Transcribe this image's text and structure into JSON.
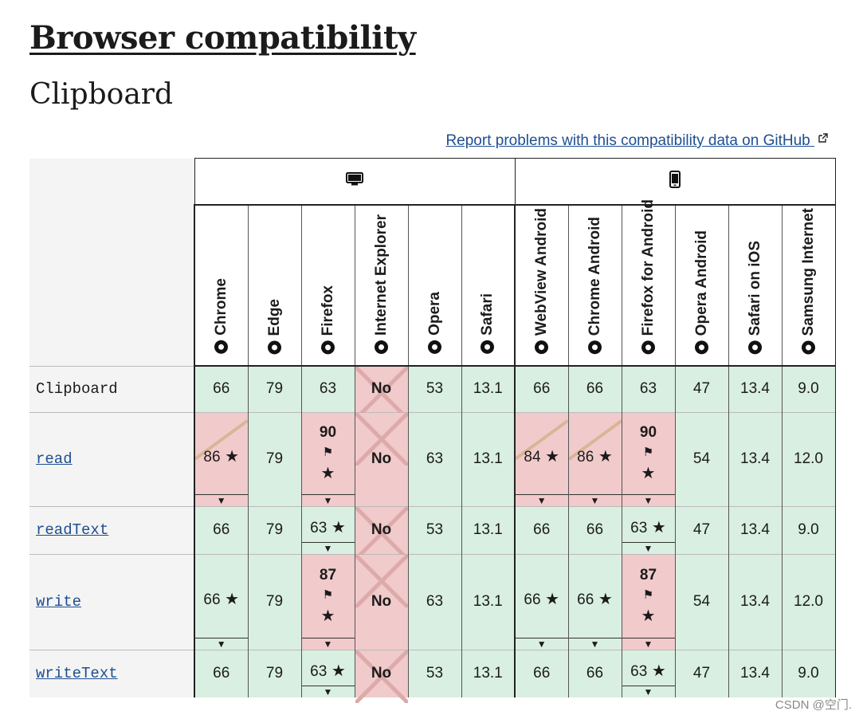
{
  "header": {
    "title": "Browser compatibility",
    "subtitle": "Clipboard",
    "report_link": "Report problems with this compatibility data on GitHub"
  },
  "groups": [
    {
      "name": "desktop-icon",
      "span": 6
    },
    {
      "name": "mobile-icon",
      "span": 6
    }
  ],
  "browsers": [
    "Chrome",
    "Edge",
    "Firefox",
    "Internet Explorer",
    "Opera",
    "Safari",
    "WebView Android",
    "Chrome Android",
    "Firefox for Android",
    "Opera Android",
    "Safari on iOS",
    "Samsung Internet"
  ],
  "rows": [
    {
      "feature": "Clipboard",
      "link": false,
      "height": 58,
      "cells": [
        {
          "v": "66",
          "s": "yes"
        },
        {
          "v": "79",
          "s": "yes"
        },
        {
          "v": "63",
          "s": "yes"
        },
        {
          "v": "No",
          "s": "no"
        },
        {
          "v": "53",
          "s": "yes"
        },
        {
          "v": "13.1",
          "s": "yes"
        },
        {
          "v": "66",
          "s": "yes"
        },
        {
          "v": "66",
          "s": "yes"
        },
        {
          "v": "63",
          "s": "yes"
        },
        {
          "v": "47",
          "s": "yes"
        },
        {
          "v": "13.4",
          "s": "yes"
        },
        {
          "v": "9.0",
          "s": "yes"
        }
      ]
    },
    {
      "feature": "read",
      "link": true,
      "height": 118,
      "cells": [
        {
          "v": "86",
          "s": "partial",
          "star": true,
          "exp": true
        },
        {
          "v": "79",
          "s": "yes"
        },
        {
          "v": "90",
          "s": "flag",
          "star": true,
          "exp": true
        },
        {
          "v": "No",
          "s": "no"
        },
        {
          "v": "63",
          "s": "yes"
        },
        {
          "v": "13.1",
          "s": "yes"
        },
        {
          "v": "84",
          "s": "partial",
          "star": true,
          "exp": true
        },
        {
          "v": "86",
          "s": "partial",
          "star": true,
          "exp": true
        },
        {
          "v": "90",
          "s": "flag",
          "star": true,
          "exp": true
        },
        {
          "v": "54",
          "s": "yes"
        },
        {
          "v": "13.4",
          "s": "yes"
        },
        {
          "v": "12.0",
          "s": "yes"
        }
      ]
    },
    {
      "feature": "readText",
      "link": true,
      "height": 60,
      "cells": [
        {
          "v": "66",
          "s": "yes"
        },
        {
          "v": "79",
          "s": "yes"
        },
        {
          "v": "63",
          "s": "yes",
          "star": true,
          "exp": true
        },
        {
          "v": "No",
          "s": "no"
        },
        {
          "v": "53",
          "s": "yes"
        },
        {
          "v": "13.1",
          "s": "yes"
        },
        {
          "v": "66",
          "s": "yes"
        },
        {
          "v": "66",
          "s": "yes"
        },
        {
          "v": "63",
          "s": "yes",
          "star": true,
          "exp": true
        },
        {
          "v": "47",
          "s": "yes"
        },
        {
          "v": "13.4",
          "s": "yes"
        },
        {
          "v": "9.0",
          "s": "yes"
        }
      ]
    },
    {
      "feature": "write",
      "link": true,
      "height": 120,
      "cells": [
        {
          "v": "66",
          "s": "yes",
          "star": true,
          "exp": true
        },
        {
          "v": "79",
          "s": "yes"
        },
        {
          "v": "87",
          "s": "flag",
          "star": true,
          "exp": true
        },
        {
          "v": "No",
          "s": "no"
        },
        {
          "v": "63",
          "s": "yes"
        },
        {
          "v": "13.1",
          "s": "yes"
        },
        {
          "v": "66",
          "s": "yes",
          "star": true,
          "exp": true
        },
        {
          "v": "66",
          "s": "yes",
          "star": true,
          "exp": true
        },
        {
          "v": "87",
          "s": "flag",
          "star": true,
          "exp": true
        },
        {
          "v": "54",
          "s": "yes"
        },
        {
          "v": "13.4",
          "s": "yes"
        },
        {
          "v": "12.0",
          "s": "yes"
        }
      ]
    },
    {
      "feature": "writeText",
      "link": true,
      "height": 60,
      "cells": [
        {
          "v": "66",
          "s": "yes"
        },
        {
          "v": "79",
          "s": "yes"
        },
        {
          "v": "63",
          "s": "yes",
          "star": true,
          "exp": true
        },
        {
          "v": "No",
          "s": "no"
        },
        {
          "v": "53",
          "s": "yes"
        },
        {
          "v": "13.1",
          "s": "yes"
        },
        {
          "v": "66",
          "s": "yes"
        },
        {
          "v": "66",
          "s": "yes"
        },
        {
          "v": "63",
          "s": "yes",
          "star": true,
          "exp": true
        },
        {
          "v": "47",
          "s": "yes"
        },
        {
          "v": "13.4",
          "s": "yes"
        },
        {
          "v": "9.0",
          "s": "yes"
        }
      ]
    }
  ],
  "watermark": "CSDN @空门."
}
